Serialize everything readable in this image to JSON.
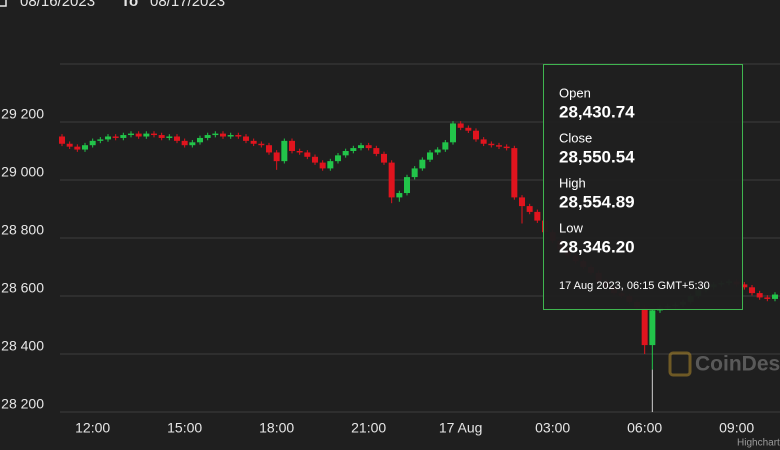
{
  "header": {
    "from": "08/16/2023",
    "to_word": "To",
    "to": "08/17/2023"
  },
  "chart_data": {
    "type": "candlestick",
    "up_color": "#22c44a",
    "down_color": "#e0141e",
    "categories": [
      "11:00",
      "11:15",
      "11:30",
      "11:45",
      "12:00",
      "12:15",
      "12:30",
      "12:45",
      "13:00",
      "13:15",
      "13:30",
      "13:45",
      "14:00",
      "14:15",
      "14:30",
      "14:45",
      "15:00",
      "15:15",
      "15:30",
      "15:45",
      "16:00",
      "16:15",
      "16:30",
      "16:45",
      "17:00",
      "17:15",
      "17:30",
      "17:45",
      "18:00",
      "18:15",
      "18:30",
      "18:45",
      "19:00",
      "19:15",
      "19:30",
      "19:45",
      "20:00",
      "20:15",
      "20:30",
      "20:45",
      "21:00",
      "21:15",
      "21:30",
      "21:45",
      "22:00",
      "22:15",
      "22:30",
      "22:45",
      "23:00",
      "23:15",
      "23:30",
      "23:45",
      "00:00",
      "00:15",
      "00:30",
      "00:45",
      "01:00",
      "01:15",
      "01:30",
      "01:45",
      "02:00",
      "02:15",
      "02:30",
      "02:45",
      "03:00",
      "03:15",
      "03:30",
      "03:45",
      "04:00",
      "04:15",
      "04:30",
      "04:45",
      "05:00",
      "05:15",
      "05:30",
      "05:45",
      "06:00",
      "06:15",
      "06:30",
      "06:45",
      "07:00",
      "07:15",
      "07:30",
      "07:45",
      "08:00",
      "08:15",
      "08:30",
      "08:45",
      "09:00",
      "09:15",
      "09:30",
      "09:45",
      "10:00",
      "10:15"
    ],
    "open": [
      29150,
      29125,
      29115,
      29105,
      29120,
      29135,
      29140,
      29150,
      29145,
      29155,
      29160,
      29150,
      29160,
      29155,
      29145,
      29150,
      29135,
      29120,
      29130,
      29145,
      29155,
      29160,
      29150,
      29155,
      29150,
      29135,
      29125,
      29120,
      29095,
      29065,
      29135,
      29100,
      29095,
      29080,
      29060,
      29040,
      29065,
      29085,
      29100,
      29110,
      29120,
      29110,
      29090,
      29060,
      28940,
      28955,
      29010,
      29040,
      29070,
      29095,
      29105,
      29130,
      29195,
      29180,
      29170,
      29140,
      29125,
      29120,
      29115,
      29110,
      28940,
      28910,
      28890,
      28860,
      28820,
      28790,
      28760,
      28740,
      28720,
      28700,
      28680,
      28650,
      28630,
      28610,
      28600,
      28580,
      28560,
      28430.74,
      28550.54,
      28560,
      28565,
      28570,
      28580,
      28600,
      28620,
      28630,
      28640,
      28645,
      28650,
      28640,
      28630,
      28610,
      28595,
      28590
    ],
    "high": [
      29158,
      29133,
      29123,
      29128,
      29143,
      29148,
      29158,
      29158,
      29163,
      29168,
      29168,
      29168,
      29168,
      29163,
      29158,
      29158,
      29143,
      29138,
      29153,
      29163,
      29168,
      29168,
      29163,
      29163,
      29158,
      29143,
      29133,
      29128,
      29103,
      29143,
      29143,
      29108,
      29103,
      29088,
      29068,
      29073,
      29093,
      29108,
      29118,
      29128,
      29128,
      29118,
      29098,
      29068,
      28963,
      29018,
      29048,
      29078,
      29103,
      29113,
      29138,
      29203,
      29203,
      29188,
      29178,
      29148,
      29133,
      29128,
      29123,
      29118,
      28948,
      28918,
      28898,
      28868,
      28828,
      28798,
      28768,
      28748,
      28728,
      28708,
      28688,
      28658,
      28638,
      28618,
      28608,
      28588,
      28568,
      28554.89,
      28568,
      28573,
      28578,
      28588,
      28608,
      28628,
      28638,
      28648,
      28653,
      28658,
      28658,
      28648,
      28638,
      28618,
      28603,
      28613
    ],
    "low": [
      29117,
      29107,
      29097,
      29097,
      29112,
      29127,
      29132,
      29137,
      29137,
      29147,
      29142,
      29142,
      29147,
      29137,
      29137,
      29127,
      29112,
      29112,
      29122,
      29137,
      29147,
      29142,
      29142,
      29142,
      29127,
      29117,
      29112,
      29087,
      29035,
      29057,
      29092,
      29087,
      29072,
      29052,
      29032,
      29032,
      29057,
      29077,
      29092,
      29102,
      29102,
      29082,
      29052,
      28920,
      28925,
      28947,
      29002,
      29032,
      29062,
      29087,
      29097,
      29122,
      29172,
      29162,
      29132,
      29117,
      29112,
      29107,
      29102,
      28932,
      28850,
      28882,
      28852,
      28812,
      28782,
      28752,
      28732,
      28712,
      28692,
      28672,
      28642,
      28622,
      28602,
      28592,
      28572,
      28552,
      28400,
      28346.2,
      28542,
      28552,
      28557,
      28562,
      28572,
      28592,
      28612,
      28622,
      28632,
      28637,
      28632,
      28622,
      28602,
      28587,
      28582,
      28582
    ],
    "close": [
      29125,
      29115,
      29105,
      29120,
      29135,
      29140,
      29150,
      29145,
      29155,
      29160,
      29150,
      29160,
      29155,
      29145,
      29150,
      29135,
      29120,
      29130,
      29145,
      29155,
      29160,
      29150,
      29155,
      29150,
      29135,
      29125,
      29120,
      29095,
      29065,
      29135,
      29100,
      29095,
      29080,
      29060,
      29040,
      29065,
      29085,
      29100,
      29110,
      29120,
      29110,
      29090,
      29060,
      28940,
      28955,
      29010,
      29040,
      29070,
      29095,
      29105,
      29130,
      29195,
      29180,
      29170,
      29140,
      29125,
      29120,
      29115,
      29110,
      28940,
      28910,
      28890,
      28860,
      28820,
      28790,
      28760,
      28740,
      28720,
      28700,
      28680,
      28650,
      28630,
      28610,
      28600,
      28580,
      28560,
      28430.74,
      28550.54,
      28560,
      28565,
      28570,
      28580,
      28600,
      28620,
      28630,
      28640,
      28645,
      28650,
      28640,
      28630,
      28610,
      28595,
      28590,
      28605
    ],
    "ylim": [
      28200,
      29400
    ],
    "yticks": [
      {
        "value": 28200,
        "label": "28 200"
      },
      {
        "value": 28400,
        "label": "28 400"
      },
      {
        "value": 28600,
        "label": "28 600"
      },
      {
        "value": 28800,
        "label": "28 800"
      },
      {
        "value": 29000,
        "label": "29 000"
      },
      {
        "value": 29200,
        "label": "29 200"
      }
    ],
    "xticks": [
      "12:00",
      "15:00",
      "18:00",
      "21:00",
      {
        "value": "00:00",
        "label": "17 Aug"
      },
      "03:00",
      "06:00",
      "09:00"
    ],
    "grid": true,
    "tooltip": {
      "date": "17 Aug 2023, 06:15 GMT+5:30",
      "items": [
        {
          "name": "Open",
          "value_label": "28,430.74"
        },
        {
          "name": "Close",
          "value_label": "28,550.54"
        },
        {
          "name": "High",
          "value_label": "28,554.89"
        },
        {
          "name": "Low",
          "value_label": "28,346.20"
        }
      ],
      "border_color": "#3fb54f"
    },
    "watermark": "CoinDesk",
    "credits": "Highcharts"
  }
}
